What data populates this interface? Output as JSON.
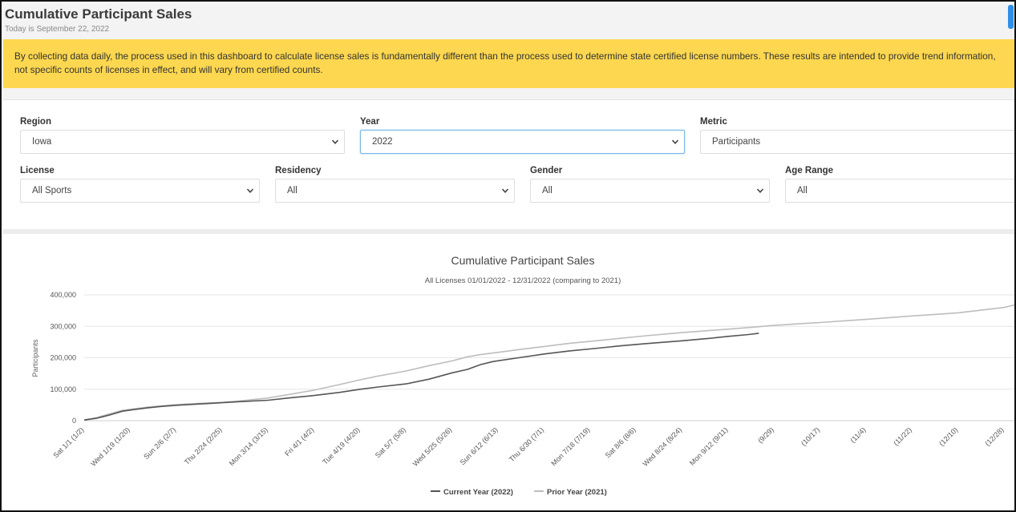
{
  "page": {
    "title": "Cumulative Participant Sales",
    "date_text": "Today is September 22, 2022",
    "notice": "By collecting data daily, the process used in this dashboard to calculate license sales is fundamentally different than the process used to determine state certified license numbers. These results are intended to provide trend information, not specific counts of licenses in effect, and will vary from certified counts."
  },
  "filters": {
    "region": {
      "label": "Region",
      "value": "Iowa"
    },
    "year": {
      "label": "Year",
      "value": "2022"
    },
    "metric": {
      "label": "Metric",
      "value": "Participants"
    },
    "license": {
      "label": "License",
      "value": "All Sports"
    },
    "residency": {
      "label": "Residency",
      "value": "All"
    },
    "gender": {
      "label": "Gender",
      "value": "All"
    },
    "age_range": {
      "label": "Age Range",
      "value": "All"
    }
  },
  "colors": {
    "banner": "#fdd74f",
    "current_series": "#555555",
    "prior_series": "#bdbdbd",
    "focus_border": "#79b6e9"
  },
  "chart_data": {
    "type": "line",
    "title": "Cumulative Participant Sales",
    "subtitle": "All Licenses 01/01/2022 - 12/31/2022 (comparing to 2021)",
    "ylabel": "Participants",
    "xlabel": "",
    "ylim": [
      0,
      400000
    ],
    "yticks": [
      0,
      100000,
      200000,
      300000,
      400000
    ],
    "ytick_labels": [
      "0",
      "100,000",
      "200,000",
      "300,000",
      "400,000"
    ],
    "grid": true,
    "legend_position": "bottom",
    "xlim_days": [
      0,
      364
    ],
    "x_tick_days": [
      0,
      18,
      36,
      54,
      72,
      90,
      108,
      126,
      144,
      162,
      180,
      198,
      216,
      234,
      252,
      270,
      288,
      306,
      324,
      342,
      360
    ],
    "x_tick_labels": [
      "Sat 1/1 (1/2)",
      "Wed 1/19 (1/20)",
      "Sun 2/6 (2/7)",
      "Thu 2/24 (2/25)",
      "Mon 3/14 (3/15)",
      "Fri 4/1 (4/2)",
      "Tue 4/19 (4/20)",
      "Sat 5/7 (5/8)",
      "Wed 5/25 (5/26)",
      "Sun 6/12 (6/13)",
      "Thu 6/30 (7/1)",
      "Mon 7/18 (7/19)",
      "Sat 8/6 (8/6)",
      "Wed 8/24 (8/24)",
      "Mon 9/12 (9/11)",
      "(9/29)",
      "(10/17)",
      "(11/4)",
      "(11/22)",
      "(12/10)",
      "(12/28)"
    ],
    "series": [
      {
        "name": "Current Year (2022)",
        "color": "#555555",
        "x": [
          0,
          5,
          10,
          15,
          20,
          25,
          30,
          36,
          45,
          54,
          60,
          72,
          80,
          90,
          100,
          108,
          115,
          126,
          135,
          144,
          150,
          155,
          160,
          170,
          180,
          190,
          198,
          210,
          220,
          234,
          245,
          252,
          260,
          264
        ],
        "y": [
          2000,
          8000,
          18000,
          30000,
          36000,
          41000,
          45000,
          49000,
          53000,
          57000,
          60000,
          65000,
          72000,
          80000,
          90000,
          100000,
          107000,
          117000,
          132000,
          152000,
          163000,
          178000,
          188000,
          200000,
          212000,
          222000,
          228000,
          238000,
          245000,
          254000,
          262000,
          268000,
          274000,
          278000
        ]
      },
      {
        "name": "Prior Year (2021)",
        "color": "#bdbdbd",
        "x": [
          0,
          5,
          10,
          15,
          20,
          25,
          30,
          36,
          45,
          54,
          60,
          72,
          80,
          90,
          100,
          108,
          115,
          126,
          135,
          144,
          150,
          155,
          160,
          170,
          180,
          190,
          198,
          210,
          220,
          234,
          245,
          252,
          260,
          270,
          288,
          306,
          324,
          342,
          360,
          364
        ],
        "y": [
          2000,
          10000,
          22000,
          33000,
          38000,
          43000,
          47000,
          51000,
          55000,
          58000,
          62000,
          72000,
          83000,
          97000,
          115000,
          130000,
          142000,
          158000,
          175000,
          190000,
          203000,
          210000,
          215000,
          226000,
          236000,
          246000,
          252000,
          262000,
          270000,
          280000,
          287000,
          291000,
          296000,
          303000,
          312000,
          322000,
          333000,
          343000,
          360000,
          368000
        ]
      }
    ]
  }
}
